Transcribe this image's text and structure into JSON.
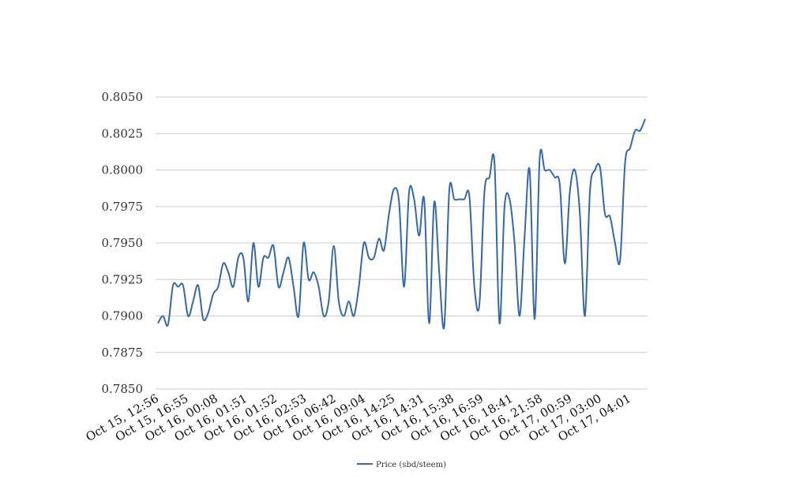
{
  "chart_data": {
    "type": "line",
    "title": "",
    "xlabel": "",
    "ylabel": "",
    "ylim": [
      0.785,
      0.805
    ],
    "y_ticks": [
      "0.8050",
      "0.8025",
      "0.8000",
      "0.7975",
      "0.7950",
      "0.7925",
      "0.7900",
      "0.7875",
      "0.7850"
    ],
    "x_tick_labels": [
      "Oct 15, 12:56",
      "Oct 15, 16:55",
      "Oct 16, 00:08",
      "Oct 16, 01:51",
      "Oct 16, 01:52",
      "Oct 16, 02:53",
      "Oct 16, 06:42",
      "Oct 16, 09:04",
      "Oct 16, 14:25",
      "Oct 16, 14:31",
      "Oct 16, 15:38",
      "Oct 16, 16:59",
      "Oct 16, 18:41",
      "Oct 16, 21:58",
      "Oct 17, 00:59",
      "Oct 17, 03:00",
      "Oct 17, 04:01"
    ],
    "grid": true,
    "legend_position": "bottom-center",
    "series": [
      {
        "name": "Price (sbd/steem)",
        "color": "#3566b2",
        "values": [
          0.7895,
          0.79,
          0.7894,
          0.7921,
          0.792,
          0.7921,
          0.79,
          0.791,
          0.7921,
          0.7898,
          0.7902,
          0.7915,
          0.792,
          0.7936,
          0.793,
          0.792,
          0.794,
          0.794,
          0.791,
          0.795,
          0.792,
          0.794,
          0.794,
          0.7948,
          0.792,
          0.793,
          0.794,
          0.792,
          0.79,
          0.795,
          0.7925,
          0.793,
          0.792,
          0.79,
          0.791,
          0.7948,
          0.791,
          0.79,
          0.791,
          0.79,
          0.792,
          0.795,
          0.794,
          0.794,
          0.7953,
          0.7945,
          0.797,
          0.7987,
          0.7978,
          0.792,
          0.7985,
          0.798,
          0.7955,
          0.798,
          0.7895,
          0.7978,
          0.793,
          0.7893,
          0.7986,
          0.798,
          0.798,
          0.798,
          0.7982,
          0.792,
          0.7908,
          0.7985,
          0.7995,
          0.8005,
          0.7895,
          0.7975,
          0.798,
          0.795,
          0.79,
          0.7955,
          0.8,
          0.7898,
          0.8008,
          0.8,
          0.8,
          0.7995,
          0.799,
          0.7936,
          0.7985,
          0.8,
          0.797,
          0.79,
          0.7985,
          0.8,
          0.8002,
          0.797,
          0.7968,
          0.795,
          0.7938,
          0.8005,
          0.8015,
          0.8027,
          0.8027,
          0.8035
        ]
      }
    ]
  }
}
